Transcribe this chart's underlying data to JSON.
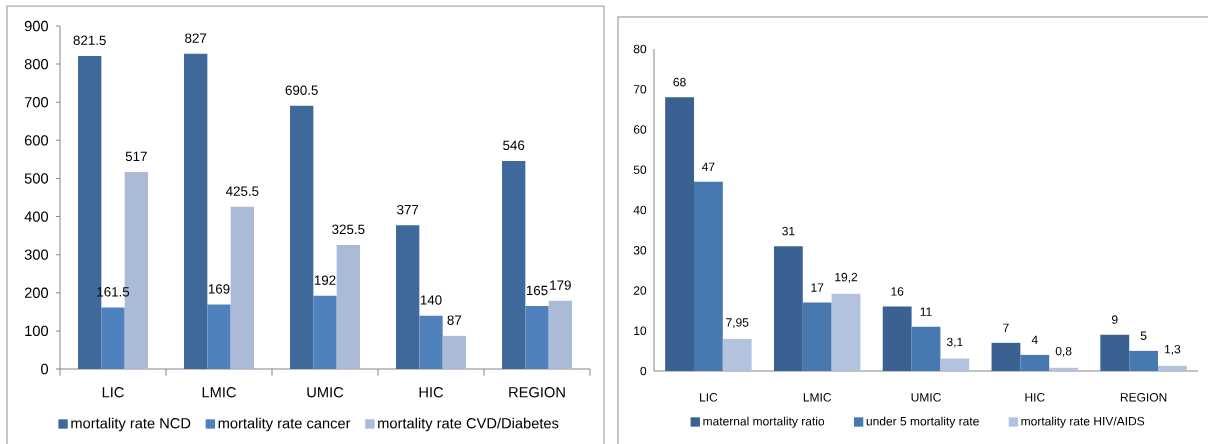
{
  "chart_data": [
    {
      "type": "bar",
      "categories": [
        "LIC",
        "LMIC",
        "UMIC",
        "HIC",
        "REGION"
      ],
      "series": [
        {
          "name": "mortality rate NCD",
          "color": "#3f689b",
          "values": [
            821.5,
            827,
            690.5,
            377,
            546
          ]
        },
        {
          "name": "mortality rate cancer",
          "color": "#4f81bd",
          "values": [
            161.5,
            169,
            192,
            140,
            165
          ]
        },
        {
          "name": "mortality rate CVD/Diabetes",
          "color": "#aabad7",
          "values": [
            517,
            425.5,
            325.5,
            87,
            179
          ]
        }
      ],
      "ylim": [
        0,
        900
      ],
      "yticks": [
        0,
        100,
        200,
        300,
        400,
        500,
        600,
        700,
        800,
        900
      ],
      "data_labels": true,
      "legend": "bottom"
    },
    {
      "type": "bar",
      "categories": [
        "LIC",
        "LMIC",
        "UMIC",
        "HIC",
        "REGION"
      ],
      "series": [
        {
          "name": "maternal mortality ratio",
          "color": "#3a6192",
          "values": [
            68,
            31,
            16,
            7,
            9
          ],
          "value_labels": [
            "68",
            "31",
            "16",
            "7",
            "9"
          ]
        },
        {
          "name": "under 5 mortality rate",
          "color": "#4878b0",
          "values": [
            47,
            17,
            11,
            4,
            5
          ],
          "value_labels": [
            "47",
            "17",
            "11",
            "4",
            "5"
          ]
        },
        {
          "name": "mortality rate HIV/AIDS",
          "color": "#b3c2de",
          "values": [
            7.95,
            19.2,
            3.1,
            0.8,
            1.3
          ],
          "value_labels": [
            "7,95",
            "19,2",
            "3,1",
            "0,8",
            "1,3"
          ]
        }
      ],
      "ylim": [
        0,
        80
      ],
      "yticks": [
        0,
        10,
        20,
        30,
        40,
        50,
        60,
        70,
        80
      ],
      "legend": "bottom"
    }
  ]
}
